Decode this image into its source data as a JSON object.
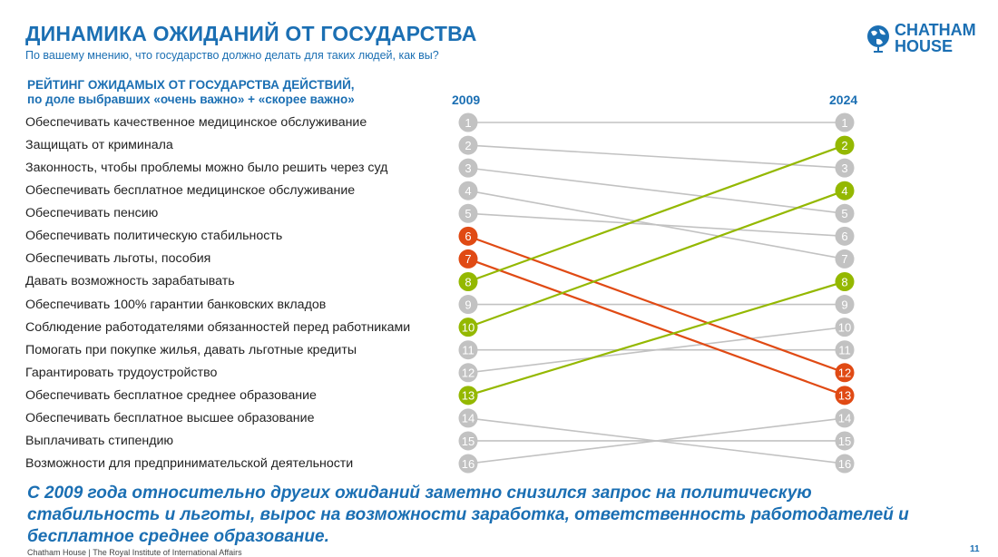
{
  "title": "ДИНАМИКА ОЖИДАНИЙ ОТ ГОСУДАРСТВА",
  "subtitle": "По вашему мнению, что государство должно делать для таких людей, как вы?",
  "logo": {
    "line1": "CHATHAM",
    "line2": "HOUSE",
    "icon": "globe-icon"
  },
  "chart_data": {
    "type": "slope",
    "heading_line1": "РЕЙТИНГ ОЖИДАМЫХ ОТ ГОСУДАРСТВА ДЕЙСТВИЙ,",
    "heading_line2": "по доле выбравших «очень важно» + «скорее важно»",
    "year_left": "2009",
    "year_right": "2024",
    "items": [
      {
        "label": "Обеспечивать качественное медицинское обслуживание",
        "rank_2009": 1,
        "rank_2024": 1,
        "trend": "same"
      },
      {
        "label": "Защищать от криминала",
        "rank_2009": 2,
        "rank_2024": 3,
        "trend": "same"
      },
      {
        "label": "Законность, чтобы проблемы можно было решить через суд",
        "rank_2009": 3,
        "rank_2024": 5,
        "trend": "same"
      },
      {
        "label": "Обеспечивать бесплатное медицинское обслуживание",
        "rank_2009": 4,
        "rank_2024": 7,
        "trend": "same"
      },
      {
        "label": "Обеспечивать пенсию",
        "rank_2009": 5,
        "rank_2024": 6,
        "trend": "same"
      },
      {
        "label": "Обеспечивать политическую стабильность",
        "rank_2009": 6,
        "rank_2024": 12,
        "trend": "down"
      },
      {
        "label": "Обеспечивать льготы, пособия",
        "rank_2009": 7,
        "rank_2024": 13,
        "trend": "down"
      },
      {
        "label": "Давать возможность зарабатывать",
        "rank_2009": 8,
        "rank_2024": 2,
        "trend": "up"
      },
      {
        "label": "Обеспечивать 100% гарантии банковских вкладов",
        "rank_2009": 9,
        "rank_2024": 9,
        "trend": "same"
      },
      {
        "label": "Соблюдение работодателями обязанностей перед работниками",
        "rank_2009": 10,
        "rank_2024": 4,
        "trend": "up"
      },
      {
        "label": "Помогать при покупке жилья, давать льготные кредиты",
        "rank_2009": 11,
        "rank_2024": 11,
        "trend": "same"
      },
      {
        "label": "Гарантировать трудоустройство",
        "rank_2009": 12,
        "rank_2024": 10,
        "trend": "same"
      },
      {
        "label": "Обеспечивать бесплатное среднее образование",
        "rank_2009": 13,
        "rank_2024": 8,
        "trend": "up"
      },
      {
        "label": "Обеспечивать бесплатное высшее образование",
        "rank_2009": 14,
        "rank_2024": 16,
        "trend": "same"
      },
      {
        "label": "Выплачивать стипендию",
        "rank_2009": 15,
        "rank_2024": 15,
        "trend": "same"
      },
      {
        "label": "Возможности для предпринимательской деятельности",
        "rank_2009": 16,
        "rank_2024": 14,
        "trend": "same"
      }
    ],
    "colors": {
      "up": "#94b800",
      "down": "#e04a14",
      "same": "#c2c2c2"
    }
  },
  "conclusion": "С 2009 года относительно других ожиданий заметно снизился запрос на политическую стабильность и льготы, вырос на возможности заработка, ответственность работодателей и бесплатное среднее образование.",
  "footer": "Chatham House | The Royal Institute of International Affairs",
  "page_number": "11"
}
